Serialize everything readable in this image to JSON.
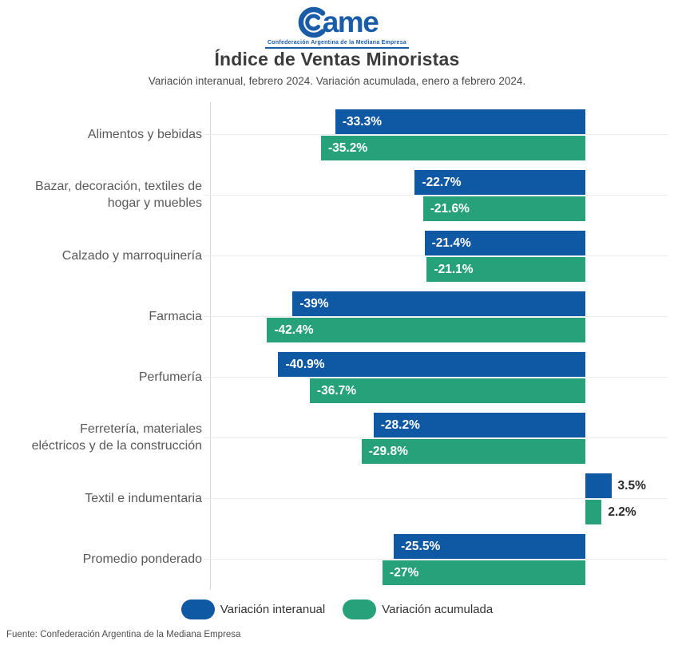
{
  "logo": {
    "text": "ame",
    "tagline": "Confederación Argentina de la Mediana Empresa",
    "color": "#1A5CA8"
  },
  "source": "Fuente: Confederación Argentina de la Mediana Empresa",
  "chart_data": {
    "type": "bar",
    "orientation": "horizontal",
    "title": "Índice de Ventas Minoristas",
    "subtitle": "Variación interanual, febrero 2024. Variación acumulada, enero a febrero 2024.",
    "unit": "%",
    "xlim": [
      -50,
      11
    ],
    "grid": "horizontal-faint",
    "legend_position": "bottom",
    "categories": [
      "Alimentos y bebidas",
      "Bazar, decoración, textiles de\nhogar y muebles",
      "Calzado y marroquinería",
      "Farmacia",
      "Perfumería",
      "Ferretería, materiales\neléctricos y de la construcción",
      "Textil e indumentaria",
      "Promedio ponderado"
    ],
    "series": [
      {
        "name": "Variación interanual",
        "color": "#0F58A4",
        "values": [
          -33.3,
          -22.7,
          -21.4,
          -39,
          -40.9,
          -28.2,
          3.5,
          -25.5
        ],
        "labels": [
          "-33.3%",
          "-22.7%",
          "-21.4%",
          "-39%",
          "-40.9%",
          "-28.2%",
          "3.5%",
          "-25.5%"
        ]
      },
      {
        "name": "Variación acumulada",
        "color": "#27A179",
        "values": [
          -35.2,
          -21.6,
          -21.1,
          -42.4,
          -36.7,
          -29.8,
          2.2,
          -27
        ],
        "labels": [
          "-35.2%",
          "-21.6%",
          "-21.1%",
          "-42.4%",
          "-36.7%",
          "-29.8%",
          "2.2%",
          "-27%"
        ]
      }
    ]
  }
}
